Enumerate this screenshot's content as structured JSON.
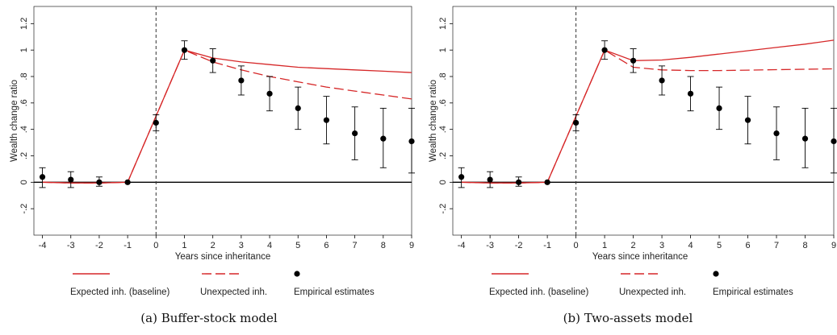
{
  "colors": {
    "model": "#d62728",
    "empirical": "#000000",
    "zero_line": "#000000",
    "event_line": "#333333"
  },
  "legend": {
    "expected": "Expected inh. (baseline)",
    "unexpected": "Unexpected inh.",
    "empirical": "Empirical estimates"
  },
  "chart_data": [
    {
      "type": "line",
      "caption": "(a) Buffer-stock model",
      "xlabel": "Years since inheritance",
      "ylabel": "Wealth change ratio",
      "xlim": [
        -4.3,
        9
      ],
      "ylim": [
        -0.4,
        1.33
      ],
      "x_ticks": [
        -4,
        -3,
        -2,
        -1,
        0,
        1,
        2,
        3,
        4,
        5,
        6,
        7,
        8,
        9
      ],
      "y_ticks": [
        -0.2,
        0,
        0.2,
        0.4,
        0.6,
        0.8,
        1,
        1.2
      ],
      "y_tick_labels": [
        "-.2",
        "0",
        ".2",
        ".4",
        ".6",
        ".8",
        "1",
        "1.2"
      ],
      "vertical_line_x": 0,
      "horizontal_line_y": 0,
      "series": [
        {
          "name": "Expected inh. (baseline)",
          "style": "solid",
          "x": [
            -4,
            -3,
            -2,
            -1,
            0,
            1,
            2,
            3,
            4,
            5,
            6,
            7,
            8,
            9
          ],
          "y": [
            0,
            -0.005,
            -0.005,
            0,
            0.5,
            1,
            0.94,
            0.91,
            0.89,
            0.87,
            0.86,
            0.85,
            0.84,
            0.83
          ]
        },
        {
          "name": "Unexpected inh.",
          "style": "dashed",
          "x": [
            -4,
            -3,
            -2,
            -1,
            0,
            1,
            2,
            3,
            4,
            5,
            6,
            7,
            8,
            9
          ],
          "y": [
            0,
            -0.005,
            -0.005,
            0,
            0.5,
            1,
            0.91,
            0.85,
            0.8,
            0.76,
            0.72,
            0.69,
            0.66,
            0.63
          ]
        },
        {
          "name": "Empirical estimates",
          "style": "points_with_ci",
          "x": [
            -4,
            -3,
            -2,
            -1,
            0,
            1,
            2,
            3,
            4,
            5,
            6,
            7,
            8,
            9
          ],
          "y": [
            0.04,
            0.02,
            0.0,
            0.0,
            0.45,
            1.0,
            0.92,
            0.77,
            0.67,
            0.56,
            0.47,
            0.37,
            0.33,
            0.31
          ],
          "ci_low": [
            -0.04,
            -0.04,
            -0.03,
            0.0,
            0.39,
            0.93,
            0.83,
            0.66,
            0.54,
            0.4,
            0.29,
            0.17,
            0.11,
            0.07
          ],
          "ci_high": [
            0.11,
            0.08,
            0.04,
            0.0,
            0.51,
            1.07,
            1.01,
            0.88,
            0.8,
            0.72,
            0.65,
            0.57,
            0.56,
            0.56
          ]
        }
      ]
    },
    {
      "type": "line",
      "caption": "(b) Two-assets model",
      "xlabel": "Years since inheritance",
      "ylabel": "Wealth change ratio",
      "xlim": [
        -4.3,
        9
      ],
      "ylim": [
        -0.4,
        1.33
      ],
      "x_ticks": [
        -4,
        -3,
        -2,
        -1,
        0,
        1,
        2,
        3,
        4,
        5,
        6,
        7,
        8,
        9
      ],
      "y_ticks": [
        -0.2,
        0,
        0.2,
        0.4,
        0.6,
        0.8,
        1,
        1.2
      ],
      "y_tick_labels": [
        "-.2",
        "0",
        ".2",
        ".4",
        ".6",
        ".8",
        "1",
        "1.2"
      ],
      "vertical_line_x": 0,
      "horizontal_line_y": 0,
      "series": [
        {
          "name": "Expected inh. (baseline)",
          "style": "solid",
          "x": [
            -4,
            -3,
            -2,
            -1,
            0,
            1,
            2,
            3,
            4,
            5,
            6,
            7,
            8,
            9
          ],
          "y": [
            0,
            -0.005,
            -0.005,
            0,
            0.5,
            1,
            0.92,
            0.925,
            0.945,
            0.97,
            0.995,
            1.02,
            1.045,
            1.075
          ]
        },
        {
          "name": "Unexpected inh.",
          "style": "dashed",
          "x": [
            -4,
            -3,
            -2,
            -1,
            0,
            1,
            2,
            3,
            4,
            5,
            6,
            7,
            8,
            9
          ],
          "y": [
            0,
            -0.005,
            -0.005,
            0,
            0.5,
            1,
            0.87,
            0.85,
            0.845,
            0.845,
            0.848,
            0.852,
            0.855,
            0.858
          ]
        },
        {
          "name": "Empirical estimates",
          "style": "points_with_ci",
          "x": [
            -4,
            -3,
            -2,
            -1,
            0,
            1,
            2,
            3,
            4,
            5,
            6,
            7,
            8,
            9
          ],
          "y": [
            0.04,
            0.02,
            0.0,
            0.0,
            0.45,
            1.0,
            0.92,
            0.77,
            0.67,
            0.56,
            0.47,
            0.37,
            0.33,
            0.31
          ],
          "ci_low": [
            -0.04,
            -0.04,
            -0.03,
            0.0,
            0.39,
            0.93,
            0.83,
            0.66,
            0.54,
            0.4,
            0.29,
            0.17,
            0.11,
            0.07
          ],
          "ci_high": [
            0.11,
            0.08,
            0.04,
            0.0,
            0.51,
            1.07,
            1.01,
            0.88,
            0.8,
            0.72,
            0.65,
            0.57,
            0.56,
            0.56
          ]
        }
      ]
    }
  ]
}
